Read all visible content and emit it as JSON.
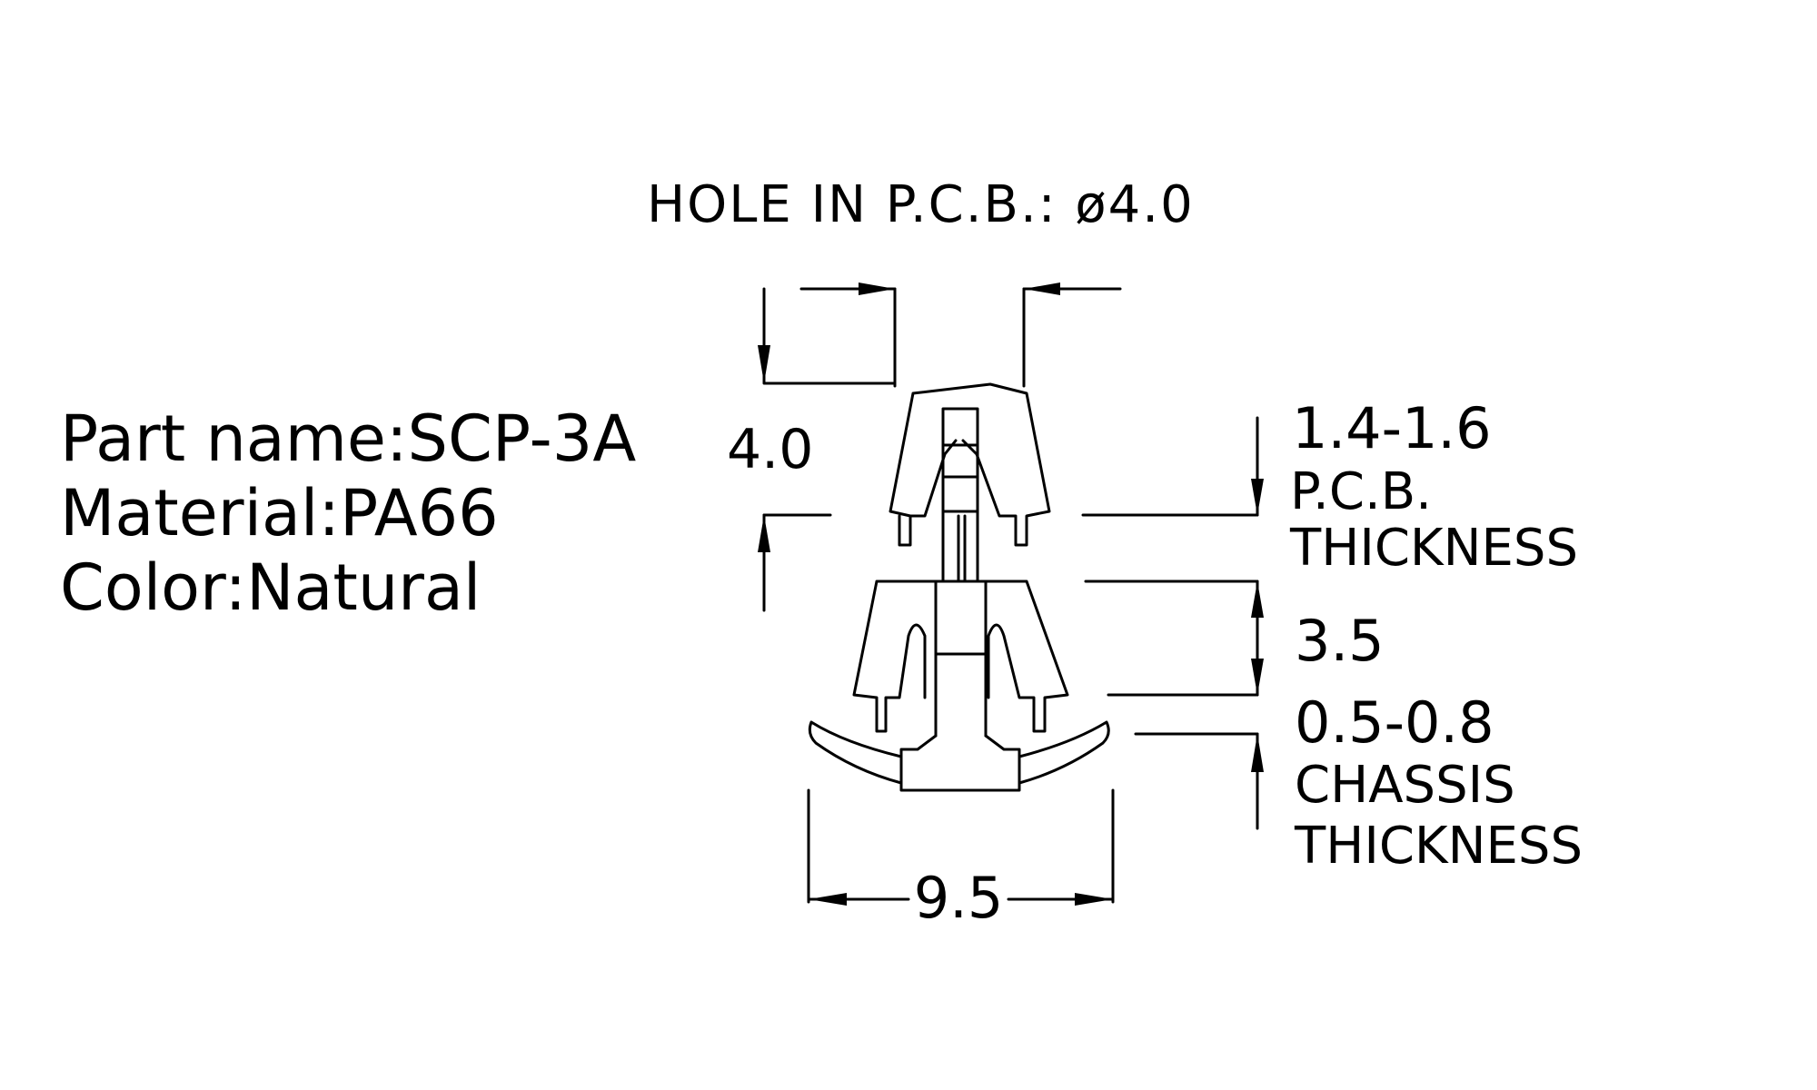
{
  "spec": {
    "part_name": "Part name:SCP-3A",
    "material": "Material:PA66",
    "color": "Color:Natural"
  },
  "drawing": {
    "hole_label": "HOLE  IN  P.C.B.:  ø4.0",
    "dim_height": "4.0",
    "dim_width": "9.5",
    "dim_gap": "3.5",
    "pcb_range": "1.4-1.6",
    "pcb_label_1": "P.C.B.",
    "pcb_label_2": "THICKNESS",
    "chassis_range": "0.5-0.8",
    "chassis_label_1": "CHASSIS",
    "chassis_label_2": "THICKNESS"
  }
}
